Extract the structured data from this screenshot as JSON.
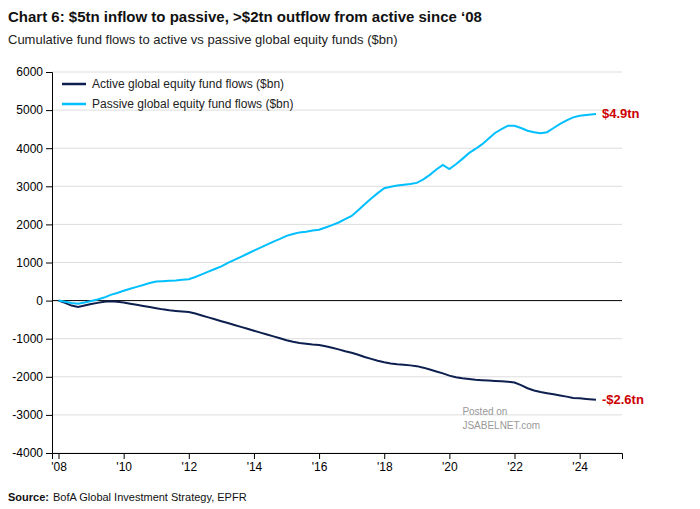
{
  "chart_data": {
    "type": "line",
    "title": "Chart 6: $5tn inflow to passive, >$2tn outflow from active since ‘08",
    "subtitle": "Cumulative fund flows to active vs passive global equity funds ($bn)",
    "source_label": "Source:",
    "source": "BofA Global Investment Strategy, EPFR",
    "watermark": [
      "Posted on",
      "JSABELNET.com"
    ],
    "x": [
      2008.0,
      2008.2,
      2008.4,
      2008.6,
      2008.8,
      2009.0,
      2009.2,
      2009.4,
      2009.6,
      2009.8,
      2010.0,
      2010.2,
      2010.4,
      2010.6,
      2010.8,
      2011.0,
      2011.2,
      2011.4,
      2011.6,
      2011.8,
      2012.0,
      2012.2,
      2012.4,
      2012.6,
      2012.8,
      2013.0,
      2013.2,
      2013.4,
      2013.6,
      2013.8,
      2014.0,
      2014.2,
      2014.4,
      2014.6,
      2014.8,
      2015.0,
      2015.2,
      2015.4,
      2015.6,
      2015.8,
      2016.0,
      2016.2,
      2016.4,
      2016.6,
      2016.8,
      2017.0,
      2017.2,
      2017.4,
      2017.6,
      2017.8,
      2018.0,
      2018.2,
      2018.4,
      2018.6,
      2018.8,
      2019.0,
      2019.2,
      2019.4,
      2019.6,
      2019.8,
      2020.0,
      2020.2,
      2020.4,
      2020.6,
      2020.8,
      2021.0,
      2021.2,
      2021.4,
      2021.6,
      2021.8,
      2022.0,
      2022.2,
      2022.4,
      2022.6,
      2022.8,
      2023.0,
      2023.2,
      2023.4,
      2023.6,
      2023.8,
      2024.0,
      2024.2,
      2024.5
    ],
    "series": [
      {
        "name": "Active global equity fund flows ($bn)",
        "color": "#0D1F4E",
        "values": [
          0,
          -60,
          -130,
          -170,
          -130,
          -90,
          -60,
          -30,
          -20,
          -30,
          -50,
          -80,
          -110,
          -140,
          -170,
          -200,
          -230,
          -255,
          -270,
          -285,
          -300,
          -340,
          -390,
          -440,
          -490,
          -540,
          -590,
          -640,
          -690,
          -740,
          -790,
          -840,
          -890,
          -940,
          -990,
          -1040,
          -1080,
          -1110,
          -1130,
          -1150,
          -1165,
          -1200,
          -1240,
          -1280,
          -1330,
          -1370,
          -1420,
          -1480,
          -1530,
          -1580,
          -1620,
          -1650,
          -1670,
          -1685,
          -1700,
          -1720,
          -1760,
          -1810,
          -1860,
          -1910,
          -1970,
          -2010,
          -2040,
          -2060,
          -2080,
          -2090,
          -2100,
          -2110,
          -2120,
          -2130,
          -2150,
          -2220,
          -2300,
          -2360,
          -2400,
          -2430,
          -2460,
          -2490,
          -2520,
          -2555,
          -2565,
          -2580,
          -2600
        ]
      },
      {
        "name": "Passive global equity fund flows ($bn)",
        "color": "#00BFFF",
        "values": [
          0,
          -30,
          -60,
          -80,
          -50,
          -10,
          30,
          80,
          150,
          200,
          260,
          310,
          360,
          410,
          460,
          500,
          510,
          520,
          530,
          545,
          560,
          620,
          690,
          760,
          830,
          900,
          990,
          1070,
          1150,
          1230,
          1310,
          1390,
          1470,
          1550,
          1620,
          1700,
          1750,
          1790,
          1810,
          1840,
          1860,
          1920,
          1980,
          2050,
          2140,
          2220,
          2370,
          2530,
          2680,
          2820,
          2950,
          2990,
          3020,
          3040,
          3060,
          3090,
          3180,
          3300,
          3440,
          3560,
          3450,
          3580,
          3720,
          3870,
          3980,
          4100,
          4250,
          4400,
          4500,
          4590,
          4590,
          4530,
          4460,
          4420,
          4390,
          4420,
          4530,
          4640,
          4730,
          4810,
          4850,
          4870,
          4900
        ]
      }
    ],
    "annotations": [
      {
        "text": "$4.9tn",
        "x": 2024.5,
        "y": 4900,
        "color": "#CC0000"
      },
      {
        "text": "-$2.6tn",
        "x": 2024.5,
        "y": -2600,
        "color": "#CC0000"
      }
    ],
    "xlim": [
      2007.8,
      2025.3
    ],
    "xticks": [
      {
        "value": 2008,
        "label": "'08"
      },
      {
        "value": 2010,
        "label": "'10"
      },
      {
        "value": 2012,
        "label": "'12"
      },
      {
        "value": 2014,
        "label": "'14"
      },
      {
        "value": 2016,
        "label": "'16"
      },
      {
        "value": 2018,
        "label": "'18"
      },
      {
        "value": 2020,
        "label": "'20"
      },
      {
        "value": 2022,
        "label": "'22"
      },
      {
        "value": 2024,
        "label": "'24"
      }
    ],
    "ylim": [
      -4000,
      6000
    ],
    "yticks": [
      -4000,
      -3000,
      -2000,
      -1000,
      0,
      1000,
      2000,
      3000,
      4000,
      5000,
      6000
    ],
    "grid": true,
    "legend": "upper-left"
  }
}
